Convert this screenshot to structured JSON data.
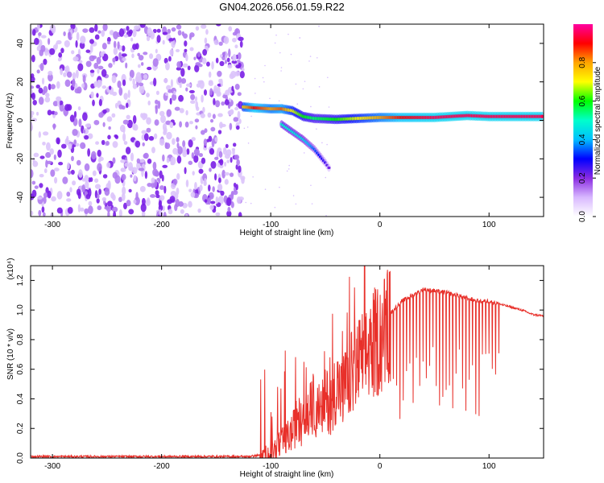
{
  "title": "GN04.2026.056.01.59.R22",
  "chart_data": [
    {
      "type": "heatmap",
      "xlabel": "Height of straight line (km)",
      "ylabel": "Frequency (Hz)",
      "xlim": [
        -320,
        150
      ],
      "ylim": [
        -50,
        50
      ],
      "xticks": [
        -300,
        -200,
        -100,
        0,
        100
      ],
      "yticks": [
        -40,
        -20,
        0,
        20,
        40
      ],
      "colorbar": {
        "label": "Normalized spectral amplitude",
        "range": [
          0,
          1
        ],
        "ticks": [
          0.0,
          0.2,
          0.4,
          0.6,
          0.8
        ],
        "colors": [
          "#ffffff",
          "#d8b8ff",
          "#8a2be2",
          "#0000ff",
          "#00bfff",
          "#00ffcc",
          "#00ff00",
          "#ffff00",
          "#ffa500",
          "#ff0000",
          "#ff00a0"
        ]
      },
      "noise_region": {
        "x_range": [
          -320,
          -125
        ],
        "amplitude": 0.2
      },
      "ridge": [
        {
          "x": -125,
          "f": 7,
          "amp": 0.75
        },
        {
          "x": -115,
          "f": 6.5,
          "amp": 0.9
        },
        {
          "x": -100,
          "f": 6,
          "amp": 0.8
        },
        {
          "x": -90,
          "f": 6,
          "amp": 0.85
        },
        {
          "x": -80,
          "f": 5,
          "amp": 0.7
        },
        {
          "x": -70,
          "f": 2,
          "amp": 0.6
        },
        {
          "x": -60,
          "f": 1,
          "amp": 0.55
        },
        {
          "x": -40,
          "f": 0.5,
          "amp": 0.6
        },
        {
          "x": -20,
          "f": 1,
          "amp": 0.7
        },
        {
          "x": 0,
          "f": 1.5,
          "amp": 0.8
        },
        {
          "x": 20,
          "f": 1.5,
          "amp": 0.9
        },
        {
          "x": 50,
          "f": 1.5,
          "amp": 0.95
        },
        {
          "x": 80,
          "f": 2.5,
          "amp": 0.95
        },
        {
          "x": 100,
          "f": 2,
          "amp": 0.95
        },
        {
          "x": 150,
          "f": 2,
          "amp": 0.95
        }
      ],
      "branch": [
        {
          "x": -90,
          "f": -2,
          "amp": 0.5
        },
        {
          "x": -70,
          "f": -10,
          "amp": 0.45
        },
        {
          "x": -60,
          "f": -15,
          "amp": 0.35
        },
        {
          "x": -50,
          "f": -22,
          "amp": 0.25
        },
        {
          "x": -45,
          "f": -26,
          "amp": 0.2
        }
      ]
    },
    {
      "type": "line",
      "xlabel": "Height of straight line (km)",
      "ylabel": "SNR (10 * v/v)",
      "multiplier": "(x10⁴)",
      "xlim": [
        -320,
        150
      ],
      "ylim": [
        0,
        1.3
      ],
      "xticks": [
        -300,
        -200,
        -100,
        0,
        100
      ],
      "yticks": [
        0.0,
        0.2,
        0.4,
        0.6,
        0.8,
        1.0,
        1.2
      ],
      "color": "#e8302a",
      "series": [
        {
          "x": [
            -320,
            -200,
            -120,
            -110,
            -100,
            -90,
            -80,
            -75,
            -70,
            -65,
            -60,
            -55,
            -50,
            -45,
            -40,
            -35,
            -30,
            -25,
            -20,
            -15,
            -10,
            -5,
            0,
            10,
            20,
            30,
            40,
            50,
            60,
            70,
            80,
            90,
            100,
            110,
            120,
            130,
            140,
            150
          ],
          "y": [
            0.01,
            0.01,
            0.01,
            0.02,
            0.05,
            0.12,
            0.2,
            0.3,
            0.25,
            0.35,
            0.4,
            0.3,
            0.45,
            0.4,
            0.55,
            0.5,
            0.55,
            0.65,
            0.7,
            0.75,
            0.8,
            0.85,
            0.9,
            0.98,
            1.06,
            1.1,
            1.14,
            1.13,
            1.12,
            1.1,
            1.08,
            1.06,
            1.06,
            1.04,
            1.02,
            1.0,
            0.97,
            0.96
          ]
        }
      ]
    }
  ]
}
